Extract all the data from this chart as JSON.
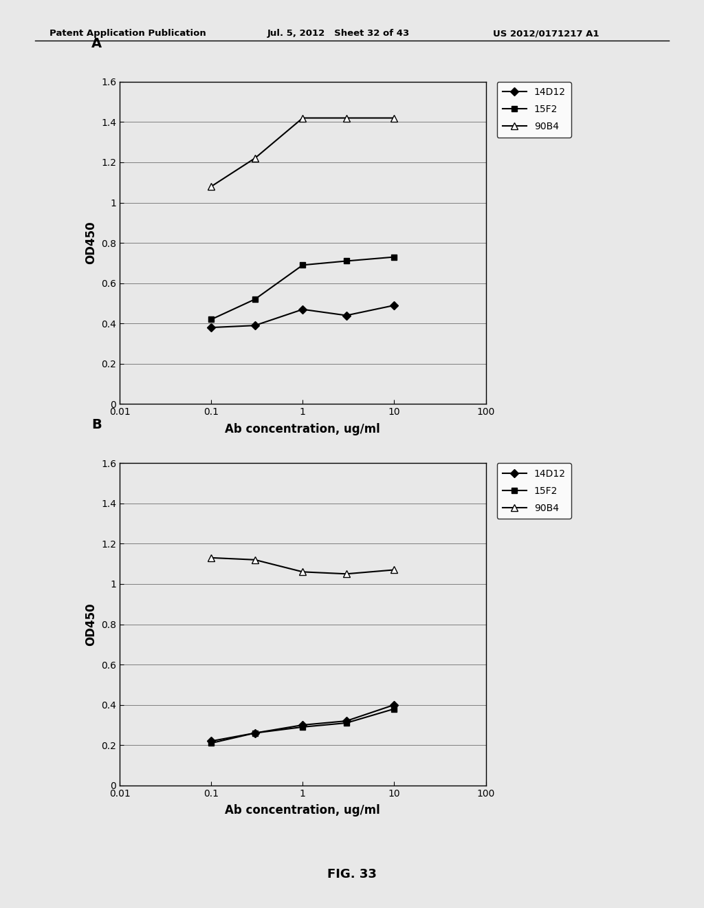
{
  "panel_A": {
    "label": "A",
    "series": [
      {
        "name": "14D12",
        "x": [
          0.1,
          0.3,
          1,
          3,
          10
        ],
        "y": [
          0.38,
          0.39,
          0.47,
          0.44,
          0.49
        ],
        "marker": "D",
        "color": "#000000",
        "markersize": 6,
        "linewidth": 1.5,
        "markerfacecolor": "#000000"
      },
      {
        "name": "15F2",
        "x": [
          0.1,
          0.3,
          1,
          3,
          10
        ],
        "y": [
          0.42,
          0.52,
          0.69,
          0.71,
          0.73
        ],
        "marker": "s",
        "color": "#000000",
        "markersize": 6,
        "linewidth": 1.5,
        "markerfacecolor": "#000000"
      },
      {
        "name": "90B4",
        "x": [
          0.1,
          0.3,
          1,
          3,
          10
        ],
        "y": [
          1.08,
          1.22,
          1.42,
          1.42,
          1.42
        ],
        "marker": "^",
        "color": "#000000",
        "markersize": 7,
        "linewidth": 1.5,
        "markerfacecolor": "#ffffff"
      }
    ],
    "ylim": [
      0,
      1.6
    ],
    "yticks": [
      0,
      0.2,
      0.4,
      0.6,
      0.8,
      1.0,
      1.2,
      1.4,
      1.6
    ],
    "ylabel": "OD450",
    "xlabel": "Ab concentration, ug/ml",
    "xlim": [
      0.01,
      100
    ]
  },
  "panel_B": {
    "label": "B",
    "series": [
      {
        "name": "14D12",
        "x": [
          0.1,
          0.3,
          1,
          3,
          10
        ],
        "y": [
          0.22,
          0.26,
          0.3,
          0.32,
          0.4
        ],
        "marker": "D",
        "color": "#000000",
        "markersize": 6,
        "linewidth": 1.5,
        "markerfacecolor": "#000000"
      },
      {
        "name": "15F2",
        "x": [
          0.1,
          0.3,
          1,
          3,
          10
        ],
        "y": [
          0.21,
          0.26,
          0.29,
          0.31,
          0.38
        ],
        "marker": "s",
        "color": "#000000",
        "markersize": 6,
        "linewidth": 1.5,
        "markerfacecolor": "#000000"
      },
      {
        "name": "90B4",
        "x": [
          0.1,
          0.3,
          1,
          3,
          10
        ],
        "y": [
          1.13,
          1.12,
          1.06,
          1.05,
          1.07
        ],
        "marker": "^",
        "color": "#000000",
        "markersize": 7,
        "linewidth": 1.5,
        "markerfacecolor": "#ffffff"
      }
    ],
    "ylim": [
      0,
      1.6
    ],
    "yticks": [
      0,
      0.2,
      0.4,
      0.6,
      0.8,
      1.0,
      1.2,
      1.4,
      1.6
    ],
    "ylabel": "OD450",
    "xlabel": "Ab concentration, ug/ml",
    "xlim": [
      0.01,
      100
    ]
  },
  "header_left": "Patent Application Publication",
  "header_mid": "Jul. 5, 2012   Sheet 32 of 43",
  "header_right": "US 2012/0171217 A1",
  "footer": "FIG. 33",
  "bg_color": "#e8e8e8",
  "plot_bg": "#e8e8e8"
}
